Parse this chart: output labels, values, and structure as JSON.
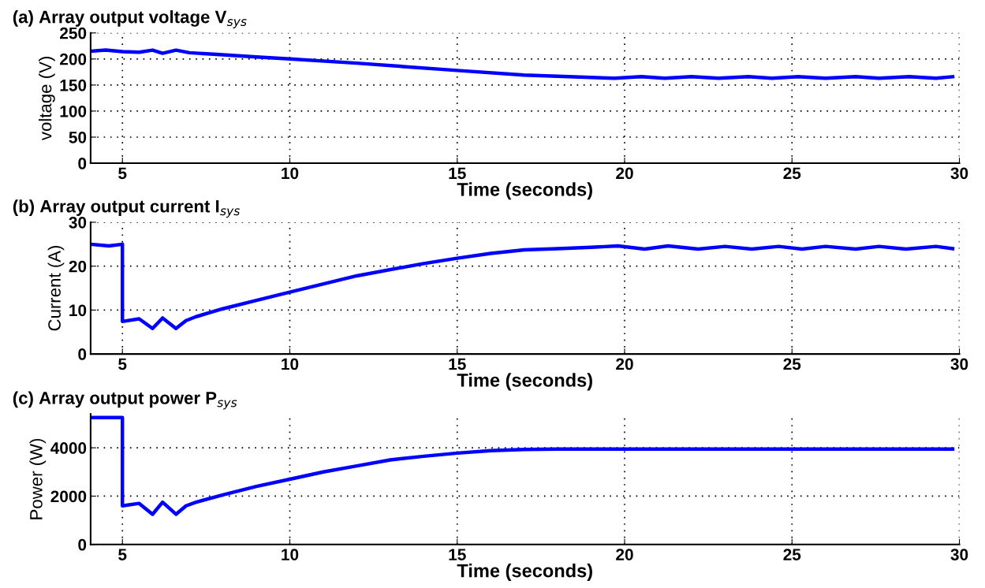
{
  "chart_data": [
    {
      "type": "line",
      "title": "(a) Array output voltage V$_{sys}$",
      "xlabel": "Time (seconds)",
      "ylabel": "voltage (V)",
      "xlim": [
        4.05,
        30
      ],
      "xticks": [
        5,
        10,
        15,
        20,
        25,
        30
      ],
      "ylim": [
        0,
        250
      ],
      "yticks": [
        0,
        50,
        100,
        150,
        200,
        250
      ],
      "grid": true,
      "series": [
        {
          "color": "#0000ff",
          "x": [
            4.06,
            4.5,
            5,
            5.5,
            5.9,
            6.2,
            6.6,
            7,
            8,
            9,
            10,
            12,
            15,
            17,
            19.7,
            20.5,
            21.2,
            22,
            22.8,
            23.7,
            24.4,
            25.2,
            26,
            26.9,
            27.6,
            28.5,
            29.3,
            29.8
          ],
          "values": [
            215,
            217,
            214,
            213,
            217,
            211,
            217,
            212,
            208,
            204,
            200,
            192,
            178,
            169,
            163,
            166,
            163,
            166,
            163,
            166,
            163,
            166,
            163,
            166,
            163,
            166,
            163,
            166
          ]
        }
      ]
    },
    {
      "type": "line",
      "title": "(b) Array output current I$_{sys}$",
      "xlabel": "Time (seconds)",
      "ylabel": "Current (A)",
      "xlim": [
        4.05,
        30
      ],
      "xticks": [
        5,
        10,
        15,
        20,
        25,
        30
      ],
      "ylim": [
        0,
        30
      ],
      "yticks": [
        0,
        10,
        20,
        30
      ],
      "grid": true,
      "series": [
        {
          "color": "#0000ff",
          "x": [
            4.06,
            4.6,
            5,
            5,
            5.5,
            5.9,
            6.2,
            6.6,
            6.9,
            7.2,
            8,
            9,
            10,
            12,
            14,
            15,
            16,
            17,
            18,
            19,
            19.8,
            20.6,
            21.3,
            22.2,
            23,
            23.8,
            24.6,
            25.3,
            26,
            26.9,
            27.6,
            28.4,
            29.3,
            29.8
          ],
          "values": [
            25,
            24.6,
            25,
            7.4,
            8,
            5.8,
            8.2,
            5.8,
            7.6,
            8.5,
            10.3,
            12.2,
            14.1,
            17.8,
            20.6,
            21.8,
            22.9,
            23.7,
            24,
            24.3,
            24.6,
            23.9,
            24.6,
            23.9,
            24.5,
            23.9,
            24.5,
            23.9,
            24.5,
            23.9,
            24.5,
            23.9,
            24.5,
            24
          ]
        }
      ]
    },
    {
      "type": "line",
      "title": "(c) Array output power P$_{sys}$",
      "xlabel": "Time (seconds)",
      "ylabel": "Power (W)",
      "xlim": [
        4.05,
        30
      ],
      "xticks": [
        5,
        10,
        15,
        20,
        25,
        30
      ],
      "ylim": [
        0,
        5400
      ],
      "yticks": [
        0,
        2000,
        4000
      ],
      "grid": true,
      "series": [
        {
          "color": "#0000ff",
          "x": [
            4.06,
            5,
            5,
            5.5,
            5.9,
            6.2,
            6.6,
            6.9,
            7.2,
            8,
            9,
            10,
            11,
            12,
            13,
            14,
            15,
            16,
            17,
            18,
            20,
            25,
            29.8
          ],
          "values": [
            5250,
            5250,
            1600,
            1700,
            1250,
            1750,
            1250,
            1600,
            1750,
            2050,
            2400,
            2700,
            3000,
            3250,
            3500,
            3650,
            3780,
            3880,
            3930,
            3950,
            3950,
            3950,
            3950
          ]
        }
      ]
    }
  ]
}
